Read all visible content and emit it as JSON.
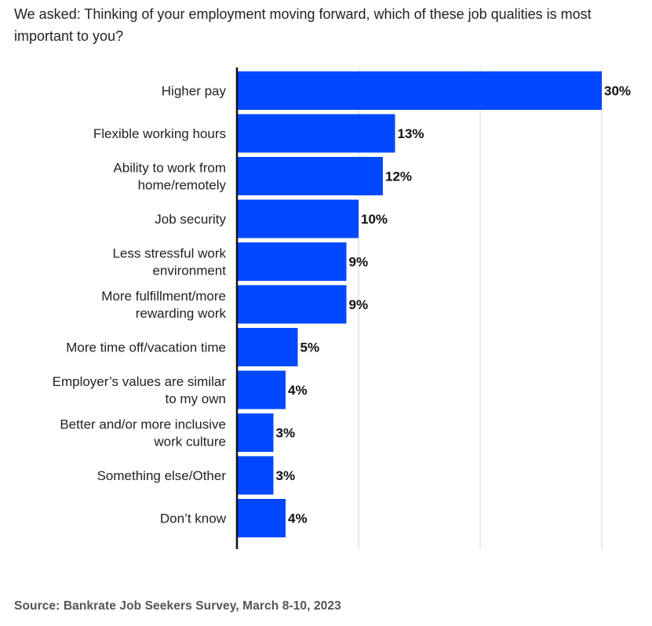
{
  "header": {
    "question": "We asked: Thinking of your employment moving forward, which of these job qualities is most important to you?"
  },
  "footer": {
    "source": "Source: Bankrate Job Seekers Survey, March 8-10, 2023"
  },
  "colors": {
    "bar": "#0048FF",
    "grid": "#D4D4D4",
    "axis": "#111111",
    "label": "#222222",
    "value": "#111111"
  },
  "chart_data": {
    "type": "bar",
    "orientation": "horizontal",
    "categories": [
      "Higher pay",
      "Flexible working hours",
      "Ability to work from home/remotely",
      "Job security",
      "Less stressful work environment",
      "More fulfillment/more rewarding work",
      "More time off/vacation time",
      "Employer’s values are similar to my own",
      "Better and/or more inclusive work culture",
      "Something else/Other",
      "Don’t know"
    ],
    "category_lines": [
      [
        "Higher pay"
      ],
      [
        "Flexible working hours"
      ],
      [
        "Ability to work from",
        "home/remotely"
      ],
      [
        "Job security"
      ],
      [
        "Less stressful work",
        "environment"
      ],
      [
        "More fulfillment/more",
        "rewarding work"
      ],
      [
        "More time off/vacation time"
      ],
      [
        "Employer’s values are similar",
        "to my own"
      ],
      [
        "Better and/or more inclusive",
        "work culture"
      ],
      [
        "Something else/Other"
      ],
      [
        "Don’t know"
      ]
    ],
    "values": [
      30,
      13,
      12,
      10,
      9,
      9,
      5,
      4,
      3,
      3,
      4
    ],
    "value_labels": [
      "30%",
      "13%",
      "12%",
      "10%",
      "9%",
      "9%",
      "5%",
      "4%",
      "3%",
      "3%",
      "4%"
    ],
    "xlim": [
      0,
      30
    ],
    "x_gridlines": [
      10,
      20,
      30
    ],
    "grid": true,
    "legend": "none",
    "unit": "%"
  }
}
